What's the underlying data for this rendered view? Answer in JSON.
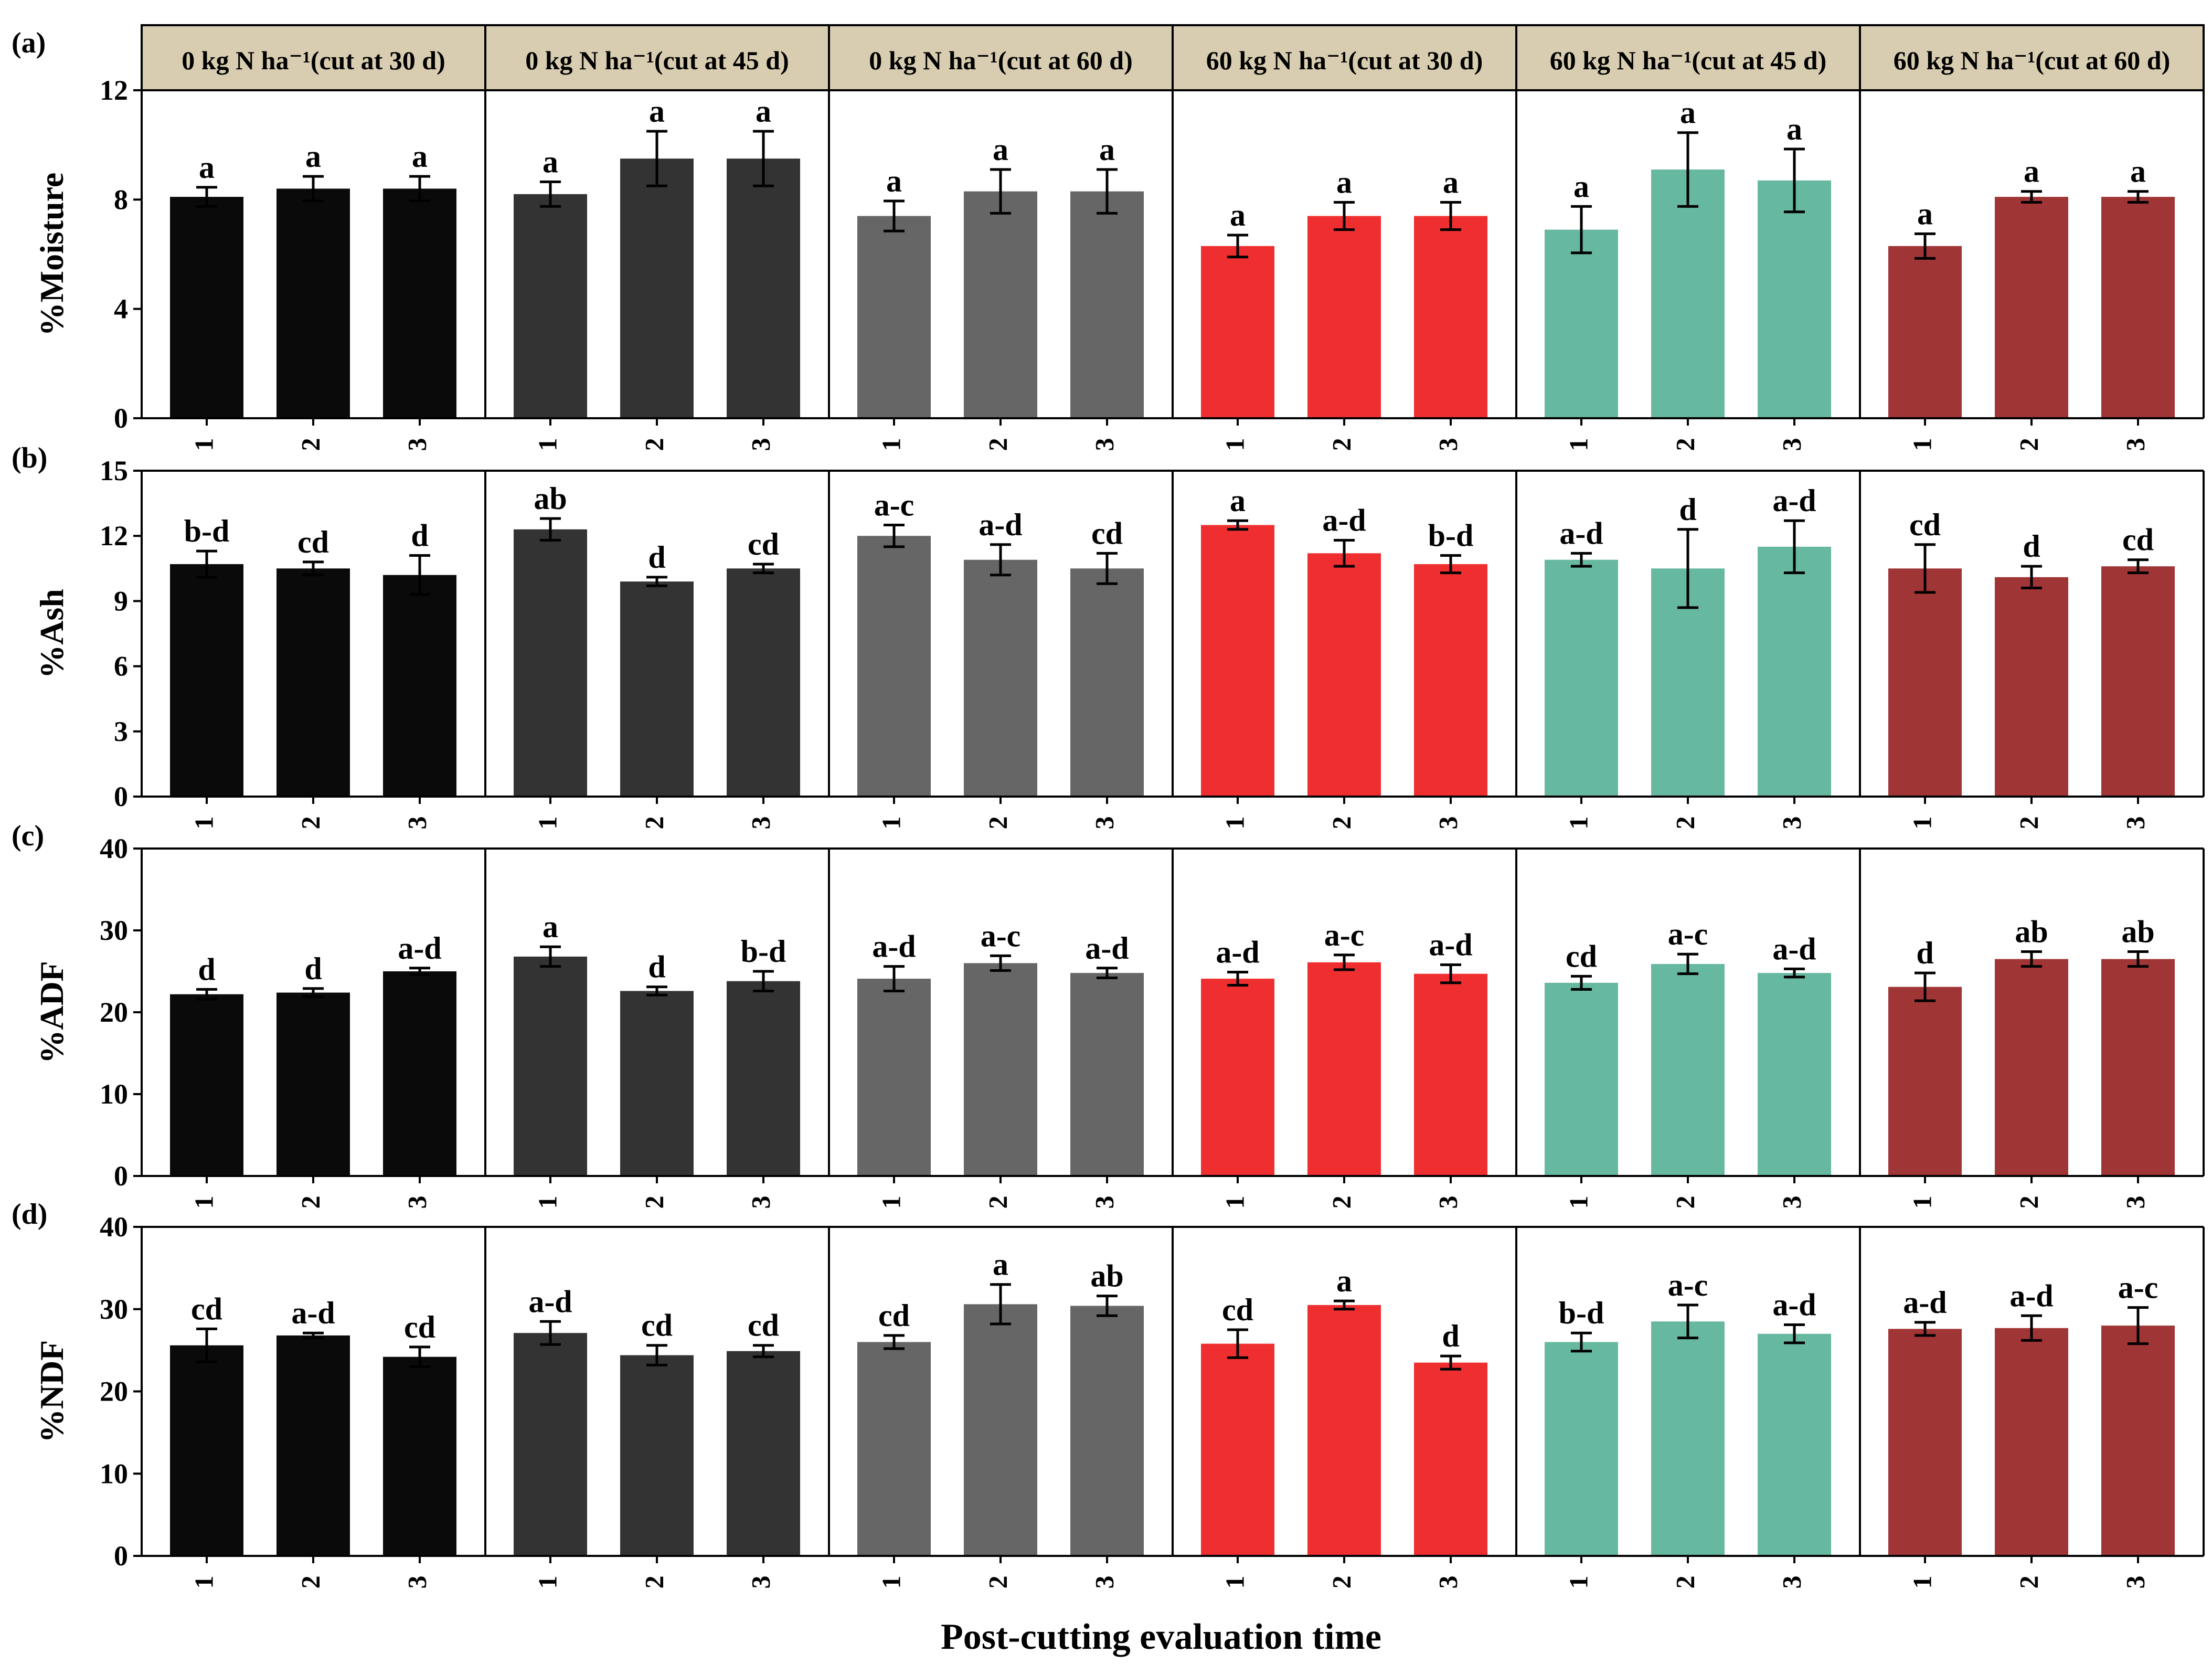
{
  "xlabel": "Post-cutting evaluation time",
  "panel_headers": [
    "0 kg N ha⁻¹(cut at 30 d)",
    "0 kg N ha⁻¹(cut at 45 d)",
    "0 kg N ha⁻¹(cut at 60 d)",
    "60 kg N ha⁻¹(cut at 30 d)",
    "60 kg N ha⁻¹(cut at 45 d)",
    "60 kg N ha⁻¹(cut at 60 d)"
  ],
  "colors": {
    "panel_bars": [
      "#0a0a0a",
      "#333333",
      "#666666",
      "#ef2f2f",
      "#67b8a0",
      "#a03536"
    ],
    "header_fill": "#d8cdb0"
  },
  "chart_data": [
    {
      "type": "bar",
      "panel_letter": "(a)",
      "ylabel": "%Moisture",
      "ylim": [
        0,
        12
      ],
      "yticks": [
        0,
        4,
        8,
        12
      ],
      "categories": [
        "1",
        "2",
        "3"
      ],
      "series": [
        {
          "values": [
            8.1,
            8.4,
            8.4
          ],
          "errors": [
            0.35,
            0.45,
            0.45
          ],
          "labels": [
            "a",
            "a",
            "a"
          ]
        },
        {
          "values": [
            8.2,
            9.5,
            9.5
          ],
          "errors": [
            0.45,
            1.0,
            1.0
          ],
          "labels": [
            "a",
            "a",
            "a"
          ]
        },
        {
          "values": [
            7.4,
            8.3,
            8.3
          ],
          "errors": [
            0.55,
            0.8,
            0.8
          ],
          "labels": [
            "a",
            "a",
            "a"
          ]
        },
        {
          "values": [
            6.3,
            7.4,
            7.4
          ],
          "errors": [
            0.4,
            0.5,
            0.5
          ],
          "labels": [
            "a",
            "a",
            "a"
          ]
        },
        {
          "values": [
            6.9,
            9.1,
            8.7
          ],
          "errors": [
            0.85,
            1.35,
            1.15
          ],
          "labels": [
            "a",
            "a",
            "a"
          ]
        },
        {
          "values": [
            6.3,
            8.1,
            8.1
          ],
          "errors": [
            0.45,
            0.2,
            0.2
          ],
          "labels": [
            "a",
            "a",
            "a"
          ]
        }
      ]
    },
    {
      "type": "bar",
      "panel_letter": "(b)",
      "ylabel": "%Ash",
      "ylim": [
        0,
        15
      ],
      "yticks": [
        0,
        3,
        6,
        9,
        12,
        15
      ],
      "categories": [
        "1",
        "2",
        "3"
      ],
      "series": [
        {
          "values": [
            10.7,
            10.5,
            10.2
          ],
          "errors": [
            0.6,
            0.3,
            0.9
          ],
          "labels": [
            "b-d",
            "cd",
            "d"
          ]
        },
        {
          "values": [
            12.3,
            9.9,
            10.5
          ],
          "errors": [
            0.5,
            0.2,
            0.2
          ],
          "labels": [
            "ab",
            "d",
            "cd"
          ]
        },
        {
          "values": [
            12.0,
            10.9,
            10.5
          ],
          "errors": [
            0.5,
            0.7,
            0.7
          ],
          "labels": [
            "a-c",
            "a-d",
            "cd"
          ]
        },
        {
          "values": [
            12.5,
            11.2,
            10.7
          ],
          "errors": [
            0.2,
            0.6,
            0.4
          ],
          "labels": [
            "a",
            "a-d",
            "b-d"
          ]
        },
        {
          "values": [
            10.9,
            10.5,
            11.5
          ],
          "errors": [
            0.3,
            1.8,
            1.2
          ],
          "labels": [
            "a-d",
            "d",
            "a-d"
          ]
        },
        {
          "values": [
            10.5,
            10.1,
            10.6
          ],
          "errors": [
            1.1,
            0.5,
            0.3
          ],
          "labels": [
            "cd",
            "d",
            "cd"
          ]
        }
      ]
    },
    {
      "type": "bar",
      "panel_letter": "(c)",
      "ylabel": "%ADF",
      "ylim": [
        0,
        40
      ],
      "yticks": [
        0,
        10,
        20,
        30,
        40
      ],
      "categories": [
        "1",
        "2",
        "3"
      ],
      "series": [
        {
          "values": [
            22.2,
            22.4,
            25.0
          ],
          "errors": [
            0.6,
            0.5,
            0.4
          ],
          "labels": [
            "d",
            "d",
            "a-d"
          ]
        },
        {
          "values": [
            26.8,
            22.6,
            23.8
          ],
          "errors": [
            1.2,
            0.5,
            1.2
          ],
          "labels": [
            "a",
            "d",
            "b-d"
          ]
        },
        {
          "values": [
            24.1,
            26.0,
            24.8
          ],
          "errors": [
            1.5,
            0.9,
            0.6
          ],
          "labels": [
            "a-d",
            "a-c",
            "a-d"
          ]
        },
        {
          "values": [
            24.1,
            26.1,
            24.7
          ],
          "errors": [
            0.8,
            0.9,
            1.1
          ],
          "labels": [
            "a-d",
            "a-c",
            "a-d"
          ]
        },
        {
          "values": [
            23.6,
            25.9,
            24.8
          ],
          "errors": [
            0.8,
            1.2,
            0.5
          ],
          "labels": [
            "cd",
            "a-c",
            "a-d"
          ]
        },
        {
          "values": [
            23.1,
            26.5,
            26.5
          ],
          "errors": [
            1.7,
            0.9,
            0.9
          ],
          "labels": [
            "d",
            "ab",
            "ab"
          ]
        }
      ]
    },
    {
      "type": "bar",
      "panel_letter": "(d)",
      "ylabel": "%NDF",
      "ylim": [
        0,
        40
      ],
      "yticks": [
        0,
        10,
        20,
        30,
        40
      ],
      "categories": [
        "1",
        "2",
        "3"
      ],
      "series": [
        {
          "values": [
            25.6,
            26.8,
            24.2
          ],
          "errors": [
            2.0,
            0.3,
            1.2
          ],
          "labels": [
            "cd",
            "a-d",
            "cd"
          ]
        },
        {
          "values": [
            27.1,
            24.4,
            24.9
          ],
          "errors": [
            1.4,
            1.2,
            0.7
          ],
          "labels": [
            "a-d",
            "cd",
            "cd"
          ]
        },
        {
          "values": [
            26.0,
            30.6,
            30.4
          ],
          "errors": [
            0.8,
            2.4,
            1.2
          ],
          "labels": [
            "cd",
            "a",
            "ab"
          ]
        },
        {
          "values": [
            25.8,
            30.5,
            23.5
          ],
          "errors": [
            1.7,
            0.5,
            0.8
          ],
          "labels": [
            "cd",
            "a",
            "d"
          ]
        },
        {
          "values": [
            26.0,
            28.5,
            27.0
          ],
          "errors": [
            1.1,
            2.0,
            1.1
          ],
          "labels": [
            "b-d",
            "a-c",
            "a-d"
          ]
        },
        {
          "values": [
            27.6,
            27.7,
            28.0
          ],
          "errors": [
            0.8,
            1.5,
            2.2
          ],
          "labels": [
            "a-d",
            "a-d",
            "a-c"
          ]
        }
      ]
    }
  ]
}
